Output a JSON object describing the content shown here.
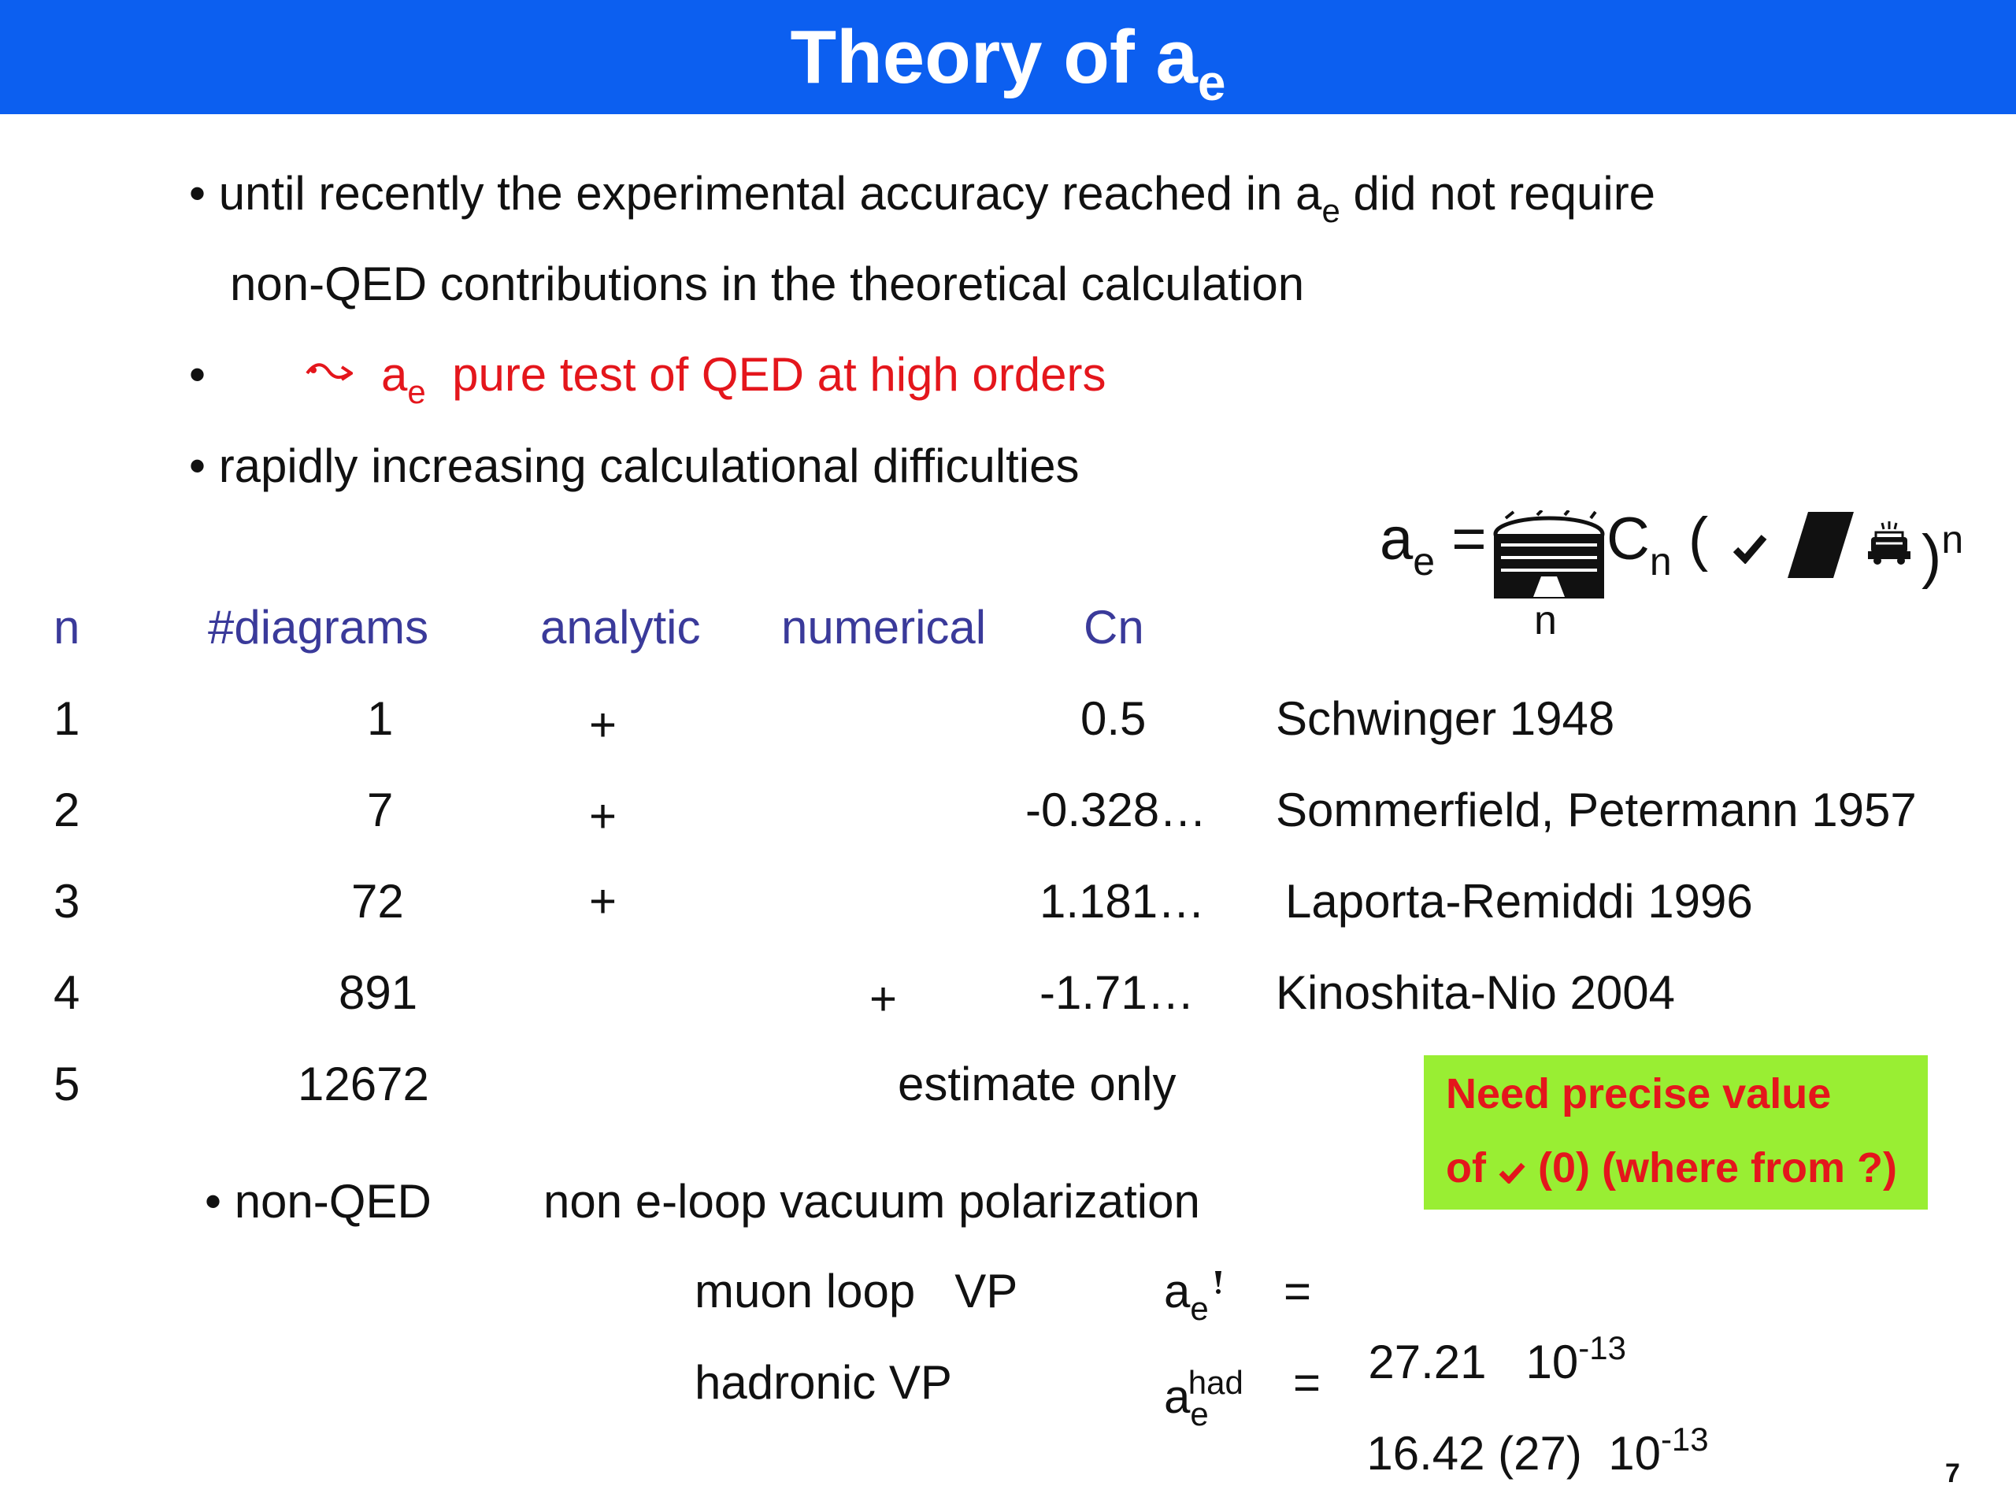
{
  "header": {
    "title_main": "Theory of a",
    "title_sub": "e"
  },
  "bullets": {
    "b1_line1_pre": "until recently the experimental accuracy reached in a",
    "b1_line1_sub": "e",
    "b1_line1_post": " did not require",
    "b1_line2": "non-QED contributions in the theoretical calculation",
    "b2_var": "a",
    "b2_var_sub": "e",
    "b2_text": "pure test of QED at high orders",
    "b3": "rapidly increasing calculational difficulties",
    "bullet_char": "•"
  },
  "formula": {
    "lhs": "a",
    "lhs_sub": "e",
    "equals": "=",
    "sum_index": "n",
    "coef": "C",
    "coef_sub": "n",
    "open_paren": "(",
    "close_paren": ")",
    "power": "n"
  },
  "table": {
    "headers": [
      "n",
      "#diagrams",
      "analytic",
      "numerical",
      "Cn"
    ],
    "rows": [
      {
        "n": "1",
        "diagrams": "1",
        "analytic": "+",
        "numerical": "",
        "cn": "0.5",
        "ref": "Schwinger 1948"
      },
      {
        "n": "2",
        "diagrams": "7",
        "analytic": "+",
        "numerical": "",
        "cn": "-0.328…",
        "ref": "Sommerfield, Petermann 1957"
      },
      {
        "n": "3",
        "diagrams": "72",
        "analytic": "+",
        "numerical": "",
        "cn": "1.181…",
        "ref": "Laporta-Remiddi 1996"
      },
      {
        "n": "4",
        "diagrams": "891",
        "analytic": "",
        "numerical": "+",
        "cn": "-1.71…",
        "ref": "Kinoshita-Nio 2004"
      },
      {
        "n": "5",
        "diagrams": "12672",
        "note": "estimate only"
      }
    ]
  },
  "callout": {
    "line1": "Need precise value",
    "line2_pre": "of",
    "line2_post": "(0) (where from ?)"
  },
  "nonqed": {
    "label": "non-QED",
    "desc": "non e-loop vacuum polarization",
    "muon_label": "muon loop   VP",
    "muon_var": "a",
    "muon_var_sub": "e",
    "muon_eq": "=",
    "muon_value": "27.21   10",
    "muon_exp": "-13",
    "had_label": "hadronic VP",
    "had_var": "a",
    "had_var_sub": "e",
    "had_var_sup": "had",
    "had_eq": "=",
    "had_value": "16.42 (27)  10",
    "had_exp": "-13"
  },
  "footer": {
    "page_number": "7"
  },
  "colors": {
    "title_bar": "#0c5ff0",
    "header_text": "#3a3a9a",
    "highlight_red": "#e4161c",
    "callout_bg": "#99ee33"
  },
  "icons": [
    "arrow-icon",
    "sum-symbol-icon",
    "alpha-icon",
    "pi-icon",
    "mu-icon"
  ]
}
